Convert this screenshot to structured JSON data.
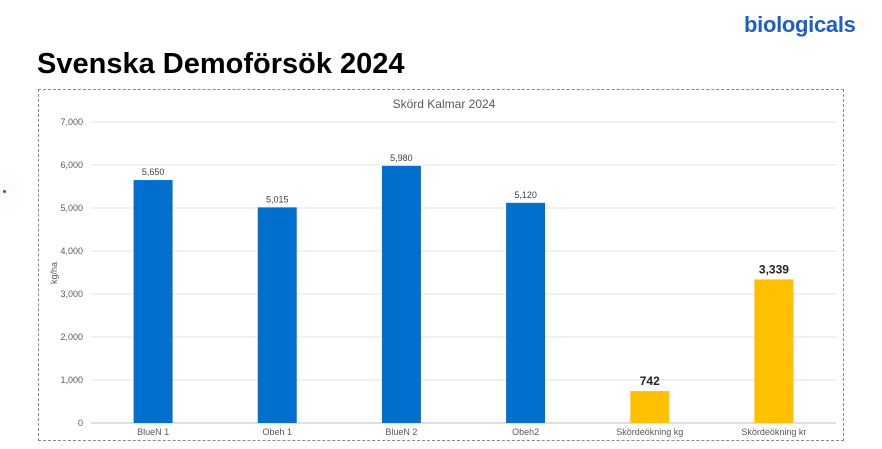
{
  "slide": {
    "title": "Svenska Demoförsök 2024",
    "logo_text": "biologicals",
    "logo_color": "#1f5fc4"
  },
  "chart_data": {
    "type": "bar",
    "title": "Skörd Kalmar 2024",
    "xlabel": "",
    "ylabel": "kg/ha",
    "ylim": [
      0,
      7000
    ],
    "yticks": [
      0,
      1000,
      2000,
      3000,
      4000,
      5000,
      6000,
      7000
    ],
    "ytick_labels": [
      "0",
      "1,000",
      "2,000",
      "3,000",
      "4,000",
      "5,000",
      "6,000",
      "7,000"
    ],
    "grid": true,
    "legend": "none",
    "categories": [
      "BlueN 1",
      "Obeh 1",
      "BlueN 2",
      "Obeh2",
      "Skördeökning kg",
      "Skördeökning kr"
    ],
    "values": [
      5650,
      5015,
      5980,
      5120,
      742,
      3339
    ],
    "value_labels": [
      "5,650",
      "5,015",
      "5,980",
      "5,120",
      "742",
      "3,339"
    ],
    "bar_colors": [
      "#0070cc",
      "#0070cc",
      "#0070cc",
      "#0070cc",
      "#ffc000",
      "#ffc000"
    ],
    "bold_labels": [
      false,
      false,
      false,
      false,
      true,
      true
    ]
  }
}
